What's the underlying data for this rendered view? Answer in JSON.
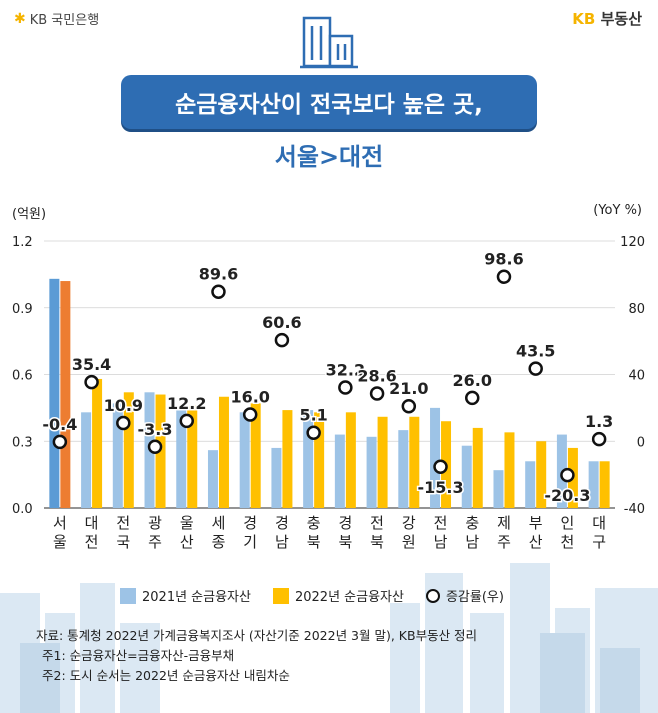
{
  "header": {
    "bank_logo_text": "KB 국민은행",
    "brand_logo_text": "부동산",
    "brand_logo_kb": "KB",
    "title": "순금융자산이 전국보다 높은 곳,",
    "subtitle": "서울>대전"
  },
  "colors": {
    "series2021": "#9dc3e6",
    "series2022": "#ffc000",
    "seoul2022": "#ed7d31",
    "seoul2021": "#5b9bd5",
    "title_bg": "#2e6db3"
  },
  "chart_data": {
    "type": "bar",
    "unit_left": "(억원)",
    "unit_right": "(YoY %)",
    "categories": [
      "서울",
      "대전",
      "전국",
      "광주",
      "울산",
      "세종",
      "경기",
      "경남",
      "충북",
      "경북",
      "전북",
      "강원",
      "전남",
      "충남",
      "제주",
      "부산",
      "인천",
      "대구"
    ],
    "series": [
      {
        "name": "2021년 순금융자산",
        "values": [
          1.03,
          0.43,
          0.47,
          0.52,
          0.46,
          0.26,
          0.43,
          0.27,
          0.44,
          0.33,
          0.32,
          0.35,
          0.45,
          0.28,
          0.17,
          0.21,
          0.33,
          0.21
        ]
      },
      {
        "name": "2022년 순금융자산",
        "values": [
          1.02,
          0.58,
          0.52,
          0.51,
          0.46,
          0.5,
          0.47,
          0.44,
          0.43,
          0.43,
          0.41,
          0.41,
          0.39,
          0.36,
          0.34,
          0.3,
          0.27,
          0.21
        ]
      },
      {
        "name": "증감률(우)",
        "values": [
          -0.4,
          35.4,
          10.9,
          -3.3,
          12.2,
          89.6,
          16.0,
          60.6,
          5.1,
          32.2,
          28.6,
          21.0,
          -15.3,
          26.0,
          98.6,
          43.5,
          -20.3,
          1.3
        ]
      }
    ],
    "data_labels": [
      "-0.4",
      "35.4",
      "10.9",
      "-3.3",
      "12.2",
      "89.6",
      "16.0",
      "60.6",
      "5.1",
      "32.2",
      "28.6",
      "21.0",
      "-15.3",
      "26.0",
      "98.6",
      "43.5",
      "-20.3",
      "1.3"
    ],
    "y_left": {
      "ticks": [
        "0.0",
        "0.3",
        "0.6",
        "0.9",
        "1.2"
      ],
      "min": 0,
      "max": 1.2
    },
    "y_right": {
      "ticks": [
        "-40",
        "0",
        "40",
        "80",
        "120"
      ],
      "min": -40,
      "max": 120
    }
  },
  "legend": {
    "item2021": "2021년 순금융자산",
    "item2022": "2022년 순금융자산",
    "itemRate": "증감률(우)"
  },
  "source": {
    "line1": "자료: 통계청 2022년 가계금융복지조사 (자산기준 2022년 3월 말), KB부동산 정리",
    "line2": "주1: 순금융자산=금융자산-금융부채",
    "line3": "주2: 도시 순서는 2022년 순금융자산 내림차순"
  }
}
